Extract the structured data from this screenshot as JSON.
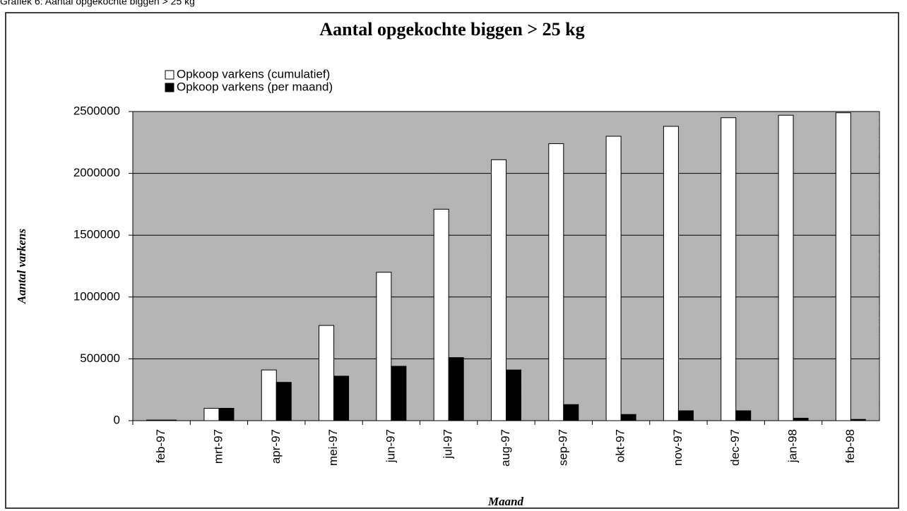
{
  "caption": "Grafiek 6: Aantal opgekochte biggen > 25 kg",
  "chart_data": {
    "type": "bar",
    "title": "Aantal opgekochte biggen > 25 kg",
    "x_label": "Maand",
    "y_label": "Aantal varkens",
    "categories": [
      "feb-97",
      "mrt-97",
      "apr-97",
      "mei-97",
      "jun-97",
      "jul-97",
      "aug-97",
      "sep-97",
      "okt-97",
      "nov-97",
      "dec-97",
      "jan-98",
      "feb-98"
    ],
    "series": [
      {
        "name": "Opkoop varkens (cumulatief)",
        "color": "#ffffff",
        "values": [
          5000,
          100000,
          410000,
          770000,
          1200000,
          1710000,
          2110000,
          2240000,
          2300000,
          2380000,
          2450000,
          2470000,
          2490000
        ]
      },
      {
        "name": "Opkoop varkens (per maand)",
        "color": "#000000",
        "values": [
          5000,
          100000,
          310000,
          360000,
          440000,
          510000,
          410000,
          130000,
          50000,
          80000,
          80000,
          20000,
          10000
        ]
      }
    ],
    "ylim": [
      0,
      2500000
    ],
    "yticks": [
      0,
      500000,
      1000000,
      1500000,
      2000000,
      2500000
    ],
    "grid": true
  }
}
